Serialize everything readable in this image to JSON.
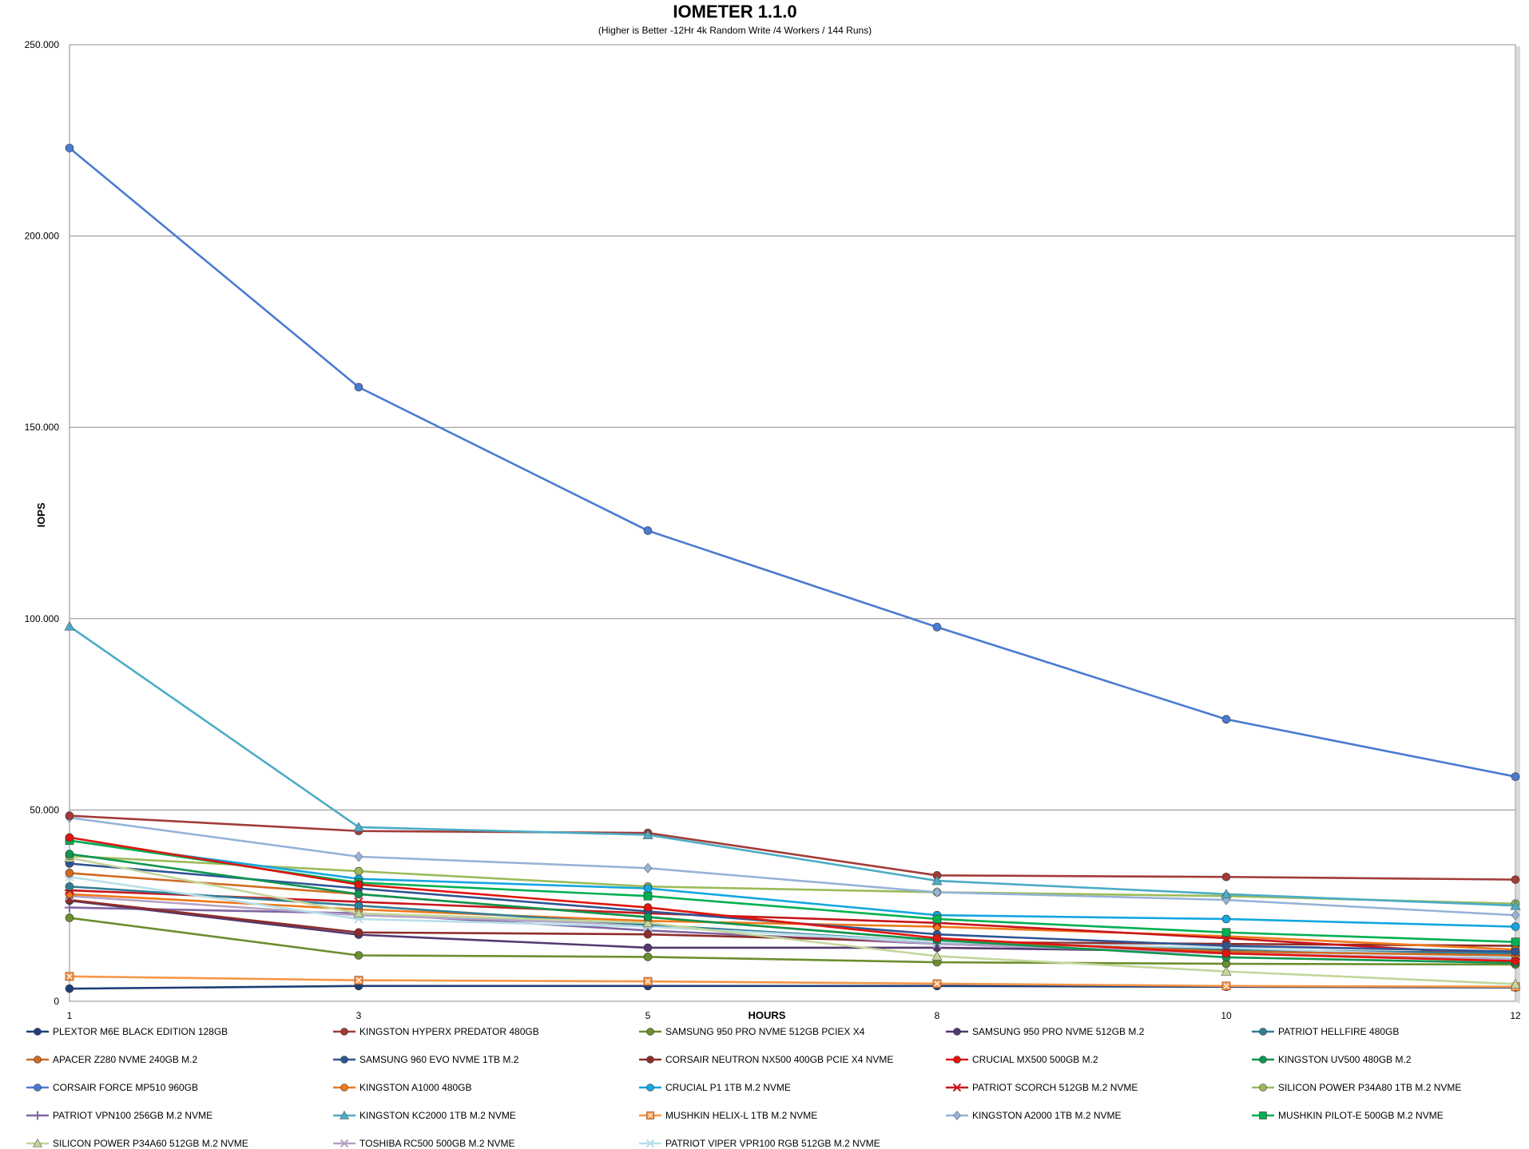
{
  "chart_data": {
    "type": "line",
    "title": "IOMETER 1.1.0",
    "subtitle": "(Higher is Better -12Hr 4k Random Write /4 Workers / 144 Runs)",
    "xlabel": "HOURS",
    "ylabel": "IOPS",
    "categories": [
      "1",
      "3",
      "5",
      "8",
      "10",
      "12"
    ],
    "ylim": [
      0,
      250000
    ],
    "y_ticks": [
      "0",
      "50.000",
      "100.000",
      "150.000",
      "200.000",
      "250.000"
    ],
    "grid": "horizontal",
    "legend_position": "bottom",
    "series": [
      {
        "name": "PLEXTOR M6E BLACK EDITION 128GB",
        "color": "#1F3E78",
        "marker": "circle",
        "values": [
          3300,
          4000,
          4000,
          4000,
          3800,
          3600
        ]
      },
      {
        "name": "KINGSTON HYPERX PREDATOR 480GB",
        "color": "#A23B37",
        "marker": "circle",
        "values": [
          48500,
          44500,
          44000,
          32900,
          32500,
          31800
        ]
      },
      {
        "name": "SAMSUNG 950 PRO NVME 512GB PCIEX X4",
        "color": "#6B8E2E",
        "marker": "circle",
        "values": [
          21800,
          12000,
          11600,
          10200,
          9800,
          9600
        ]
      },
      {
        "name": "SAMSUNG 950 PRO NVME 512GB M.2",
        "color": "#53396F",
        "marker": "circle",
        "values": [
          26300,
          17400,
          14000,
          14000,
          13000,
          12800
        ]
      },
      {
        "name": "PATRIOT HELLFIRE 480GB",
        "color": "#317E96",
        "marker": "circle",
        "values": [
          30000,
          25000,
          20000,
          15500,
          13500,
          12500
        ]
      },
      {
        "name": "APACER Z280 NVME 240GB M.2",
        "color": "#D06A20",
        "marker": "circle",
        "values": [
          33500,
          28000,
          22000,
          16000,
          13000,
          12000
        ]
      },
      {
        "name": "SAMSUNG 960 EVO NVME 1TB M.2",
        "color": "#2F5595",
        "marker": "circle",
        "values": [
          36000,
          29500,
          23500,
          17500,
          14500,
          13000
        ]
      },
      {
        "name": "CORSAIR NEUTRON NX500 400GB PCIE X4 NVME",
        "color": "#8F2D2A",
        "marker": "circle",
        "values": [
          26500,
          18000,
          17500,
          15500,
          15000,
          14500
        ]
      },
      {
        "name": "CRUCIAL MX500 500GB M.2",
        "color": "#E0150F",
        "marker": "circle",
        "values": [
          42800,
          30500,
          24500,
          16500,
          12500,
          10500
        ]
      },
      {
        "name": "KINGSTON UV500 480GB M.2",
        "color": "#0E9650",
        "marker": "circle",
        "values": [
          38500,
          28000,
          22000,
          16000,
          11500,
          10000
        ]
      },
      {
        "name": "CORSAIR FORCE MP510 960GB",
        "color": "#4A7BD2",
        "marker": "circle",
        "values": [
          223000,
          160500,
          123000,
          97800,
          73700,
          58700
        ]
      },
      {
        "name": "KINGSTON A1000 480GB",
        "color": "#F07818",
        "marker": "circle",
        "values": [
          28000,
          24000,
          21000,
          19500,
          17000,
          13500
        ]
      },
      {
        "name": "CRUCIAL P1 1TB M.2 NVME",
        "color": "#14A6E0",
        "marker": "circle",
        "values": [
          42000,
          32000,
          29500,
          22500,
          21500,
          19500
        ]
      },
      {
        "name": "PATRIOT SCORCH 512GB M.2 NVME",
        "color": "#C8161C",
        "marker": "star",
        "values": [
          29000,
          26000,
          23000,
          20500,
          16500,
          12000
        ]
      },
      {
        "name": "SILICON POWER P34A80 1TB M.2 NVME",
        "color": "#9BBB59",
        "marker": "circle",
        "values": [
          38000,
          34000,
          30000,
          28500,
          27500,
          25500
        ]
      },
      {
        "name": "PATRIOT VPN100 256GB M.2 NVME",
        "color": "#8064A2",
        "marker": "plus",
        "values": [
          24500,
          23000,
          18500,
          15000,
          12500,
          11000
        ]
      },
      {
        "name": "KINGSTON KC2000 1TB M.2 NVME",
        "color": "#4BACC6",
        "marker": "triangle",
        "values": [
          98000,
          45500,
          43500,
          31500,
          28000,
          25000
        ]
      },
      {
        "name": "MUSHKIN HELIX-L 1TB M.2 NVME",
        "color": "#F79646",
        "marker": "square-x",
        "values": [
          6500,
          5500,
          5200,
          4600,
          4000,
          3800
        ]
      },
      {
        "name": "KINGSTON A2000 1TB M.2 NVME",
        "color": "#95B3D7",
        "marker": "diamond",
        "values": [
          48000,
          37800,
          34800,
          28500,
          26500,
          22500
        ]
      },
      {
        "name": "MUSHKIN PILOT-E 500GB M.2 NVME",
        "color": "#00B050",
        "marker": "square",
        "values": [
          42000,
          31000,
          27500,
          21500,
          18000,
          15500
        ]
      },
      {
        "name": "SILICON POWER P34A60 512GB M.2 NVME",
        "color": "#C3D69B",
        "marker": "triangle",
        "values": [
          37500,
          23000,
          20500,
          11800,
          7800,
          4500
        ]
      },
      {
        "name": "TOSHIBA RC500 500GB M.2 NVME",
        "color": "#B3A2C7",
        "marker": "x",
        "values": [
          27500,
          22500,
          20000,
          15000,
          12500,
          11000
        ]
      },
      {
        "name": "PATRIOT VIPER VPR100 RGB 512GB M.2 NVME",
        "color": "#B7DEE8",
        "marker": "asterisk",
        "values": [
          32500,
          21500,
          19500,
          15500,
          14000,
          11500
        ]
      }
    ]
  }
}
